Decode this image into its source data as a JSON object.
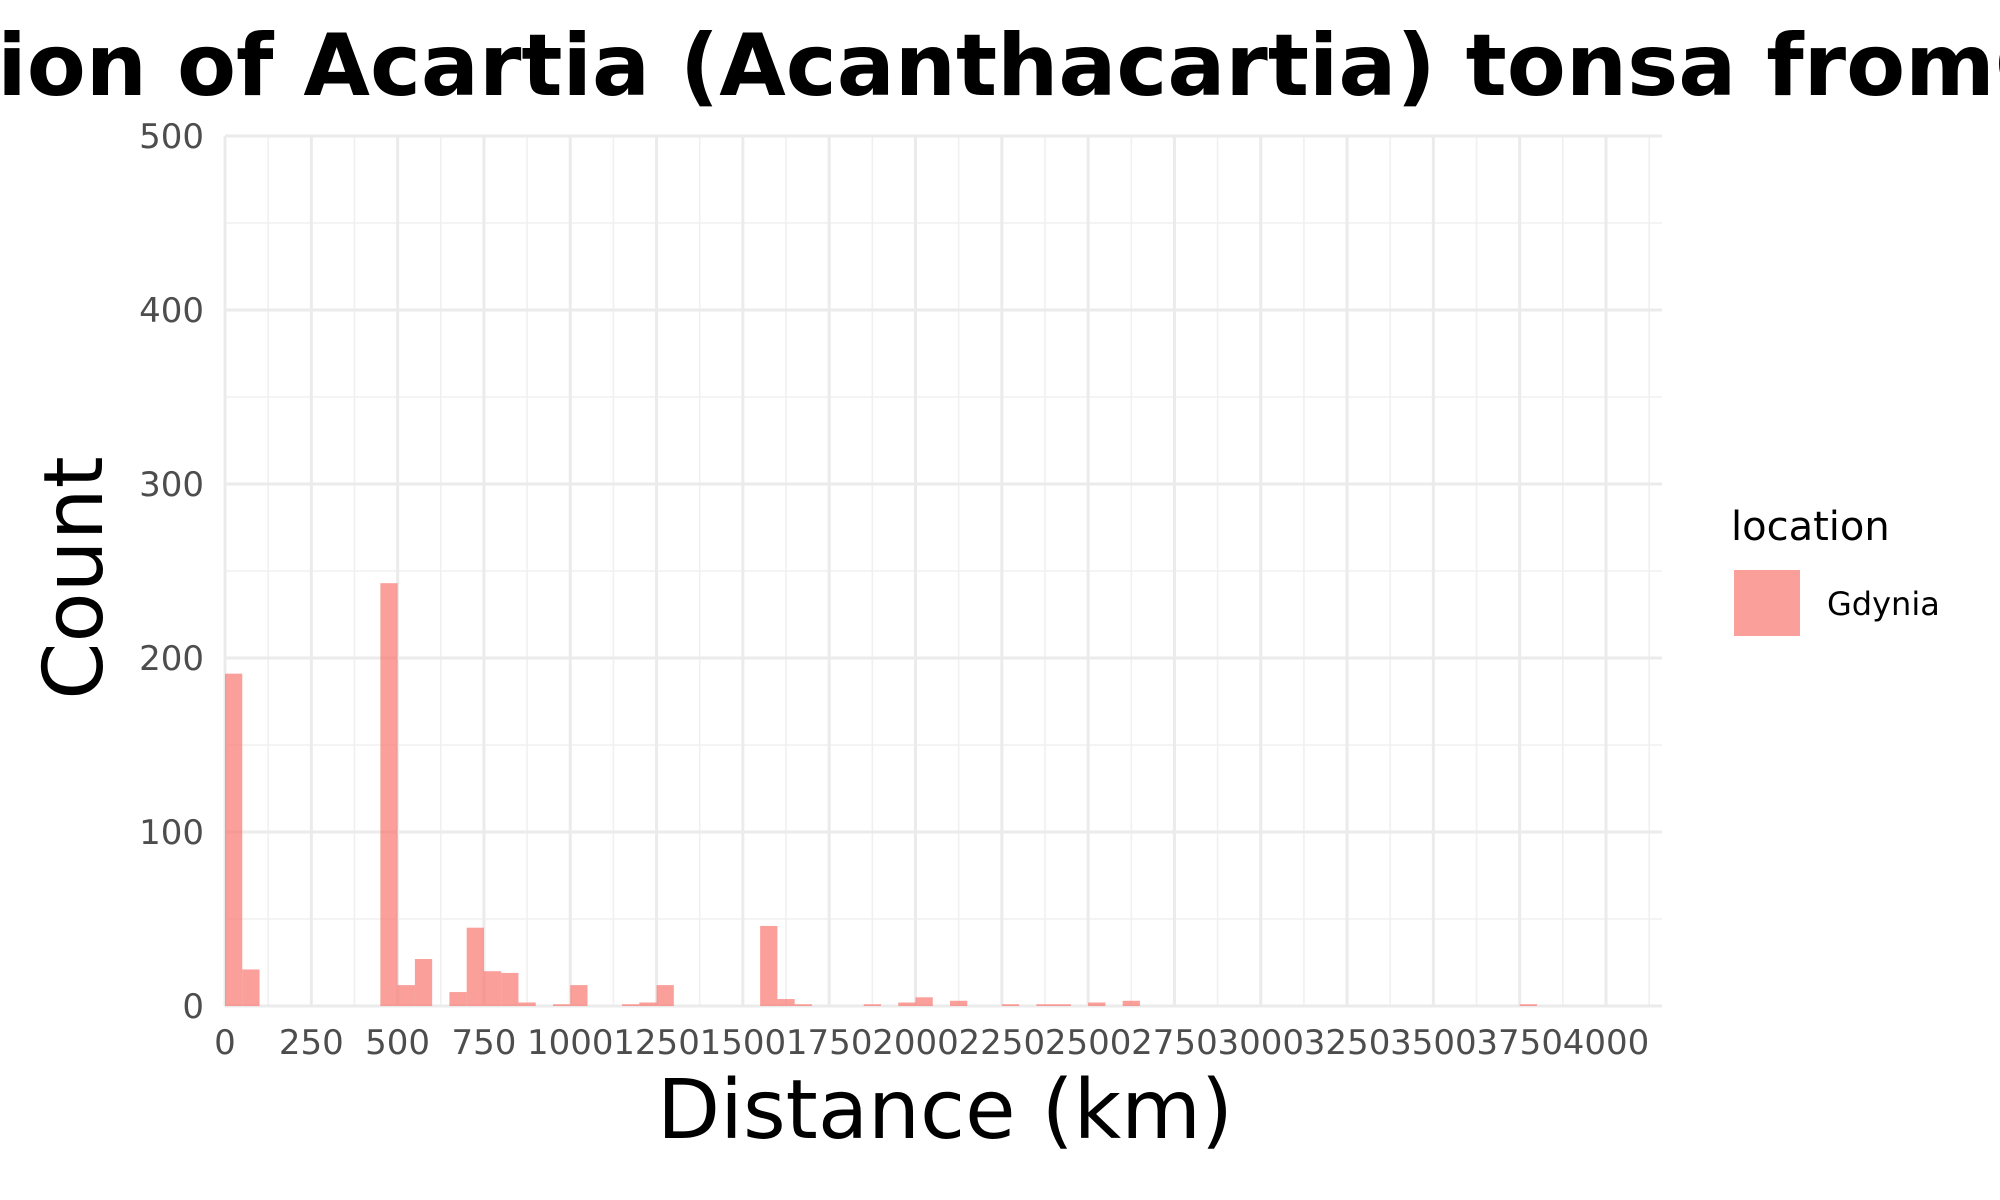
{
  "chart_data": {
    "type": "bar",
    "title": "Distribution of Acartia (Acanthacartia) tonsa fromGdynia",
    "xlabel": "Distance (km)",
    "ylabel": "Count",
    "xlim": [
      0,
      4160
    ],
    "ylim": [
      0,
      500
    ],
    "x_ticks": [
      0,
      250,
      500,
      750,
      1000,
      1250,
      1500,
      1750,
      2000,
      2250,
      2500,
      2750,
      3000,
      3250,
      3500,
      3750,
      4000
    ],
    "y_ticks": [
      0,
      100,
      200,
      300,
      400,
      500
    ],
    "grid": true,
    "bin_width": 50,
    "legend": {
      "title": "location",
      "position": "right"
    },
    "series": [
      {
        "name": "Gdynia",
        "color": "#f8766d",
        "bins": [
          {
            "x": 0,
            "count": 191
          },
          {
            "x": 50,
            "count": 21
          },
          {
            "x": 450,
            "count": 243
          },
          {
            "x": 500,
            "count": 12
          },
          {
            "x": 550,
            "count": 27
          },
          {
            "x": 650,
            "count": 8
          },
          {
            "x": 700,
            "count": 45
          },
          {
            "x": 750,
            "count": 20
          },
          {
            "x": 800,
            "count": 19
          },
          {
            "x": 850,
            "count": 2
          },
          {
            "x": 950,
            "count": 1
          },
          {
            "x": 1000,
            "count": 12
          },
          {
            "x": 1150,
            "count": 1
          },
          {
            "x": 1200,
            "count": 2
          },
          {
            "x": 1250,
            "count": 12
          },
          {
            "x": 1550,
            "count": 46
          },
          {
            "x": 1600,
            "count": 4
          },
          {
            "x": 1650,
            "count": 1
          },
          {
            "x": 1850,
            "count": 1
          },
          {
            "x": 1950,
            "count": 2
          },
          {
            "x": 2000,
            "count": 5
          },
          {
            "x": 2100,
            "count": 3
          },
          {
            "x": 2250,
            "count": 1
          },
          {
            "x": 2350,
            "count": 1
          },
          {
            "x": 2400,
            "count": 1
          },
          {
            "x": 2500,
            "count": 2
          },
          {
            "x": 2600,
            "count": 3
          },
          {
            "x": 3750,
            "count": 1
          }
        ]
      }
    ]
  }
}
